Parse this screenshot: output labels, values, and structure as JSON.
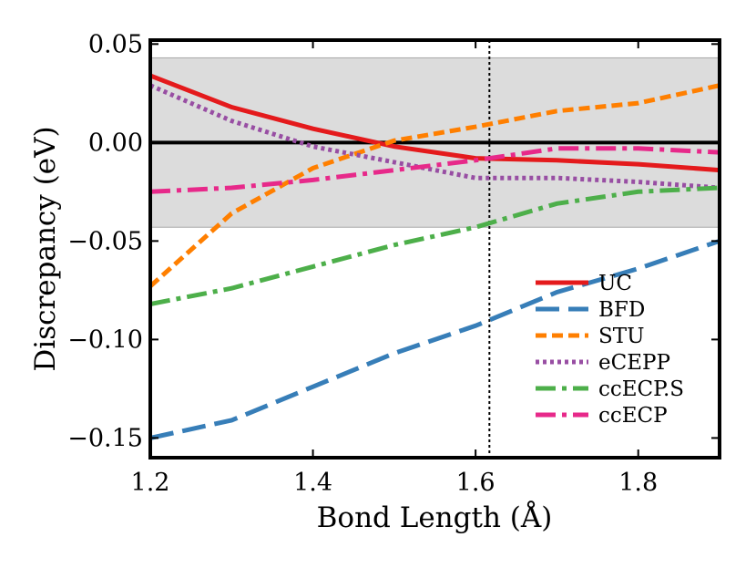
{
  "chart_data": {
    "type": "line",
    "title": "",
    "xlabel": "Bond Length (Å)",
    "ylabel": "Discrepancy (eV)",
    "xlim": [
      1.2,
      1.9
    ],
    "ylim": [
      -0.16,
      0.052
    ],
    "xticks": [
      1.2,
      1.4,
      1.6,
      1.8
    ],
    "xtick_labels": [
      "1.2",
      "1.4",
      "1.6",
      "1.8"
    ],
    "yticks": [
      -0.15,
      -0.1,
      -0.05,
      0.0,
      0.05
    ],
    "ytick_labels": [
      "−0.15",
      "−0.10",
      "−0.05",
      "0.00",
      "0.05"
    ],
    "shaded_band": [
      -0.043,
      0.043
    ],
    "shaded_color": "#dcdcdc",
    "zero_line": 0.0,
    "vertical_marker_x": 1.617,
    "legend_position": "lower-right",
    "series": [
      {
        "name": "UC",
        "color": "#e41a1c",
        "style": "solid",
        "x": [
          1.2,
          1.3,
          1.4,
          1.5,
          1.6,
          1.7,
          1.8,
          1.9
        ],
        "y": [
          0.034,
          0.018,
          0.007,
          -0.002,
          -0.008,
          -0.009,
          -0.011,
          -0.014
        ]
      },
      {
        "name": "BFD",
        "color": "#377eb8",
        "style": "longdash",
        "x": [
          1.2,
          1.3,
          1.4,
          1.5,
          1.6,
          1.7,
          1.8,
          1.9
        ],
        "y": [
          -0.15,
          -0.141,
          -0.124,
          -0.107,
          -0.093,
          -0.076,
          -0.064,
          -0.05
        ]
      },
      {
        "name": "STU",
        "color": "#ff7f00",
        "style": "dash",
        "x": [
          1.2,
          1.3,
          1.4,
          1.5,
          1.6,
          1.7,
          1.8,
          1.9
        ],
        "y": [
          -0.073,
          -0.036,
          -0.013,
          0.001,
          0.008,
          0.016,
          0.02,
          0.029
        ]
      },
      {
        "name": "eCEPP",
        "color": "#984ea3",
        "style": "dot",
        "x": [
          1.2,
          1.3,
          1.4,
          1.5,
          1.6,
          1.7,
          1.8,
          1.9
        ],
        "y": [
          0.029,
          0.011,
          -0.002,
          -0.01,
          -0.018,
          -0.018,
          -0.02,
          -0.023
        ]
      },
      {
        "name": "ccECP.S",
        "color": "#4daf4a",
        "style": "dashdot",
        "x": [
          1.2,
          1.3,
          1.4,
          1.5,
          1.6,
          1.7,
          1.8,
          1.9
        ],
        "y": [
          -0.082,
          -0.074,
          -0.063,
          -0.052,
          -0.043,
          -0.031,
          -0.025,
          -0.023
        ]
      },
      {
        "name": "ccECP",
        "color": "#e7298a",
        "style": "dashdot",
        "x": [
          1.2,
          1.3,
          1.4,
          1.5,
          1.6,
          1.7,
          1.8,
          1.9
        ],
        "y": [
          -0.025,
          -0.023,
          -0.019,
          -0.014,
          -0.009,
          -0.003,
          -0.003,
          -0.005
        ]
      }
    ]
  }
}
